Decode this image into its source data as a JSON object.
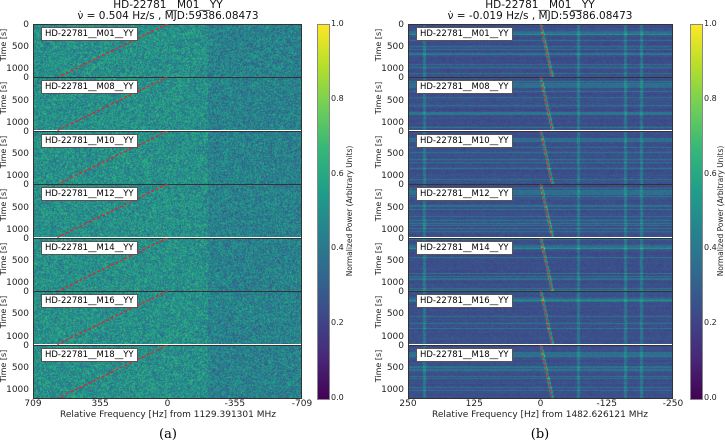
{
  "chart_data": [
    {
      "type": "heatmap",
      "panel": "(a)",
      "title": "HD-22781__M01__YY",
      "subtitle": "ν̇ = 0.504 Hz/s , MJD:59386.08473",
      "drift_rate_hz_per_s": 0.504,
      "xlabel": "Relative Frequency [Hz] from 1129.391301 MHz",
      "ylabel": "Time [s]",
      "xlim": [
        709,
        -709
      ],
      "xticks": [
        "709",
        "355",
        "0",
        "-355",
        "-709"
      ],
      "xtick_values": [
        709,
        355,
        0,
        -355,
        -709
      ],
      "ylim": [
        0,
        1150
      ],
      "yticks": [
        "0",
        "500",
        "1000"
      ],
      "ytick_values": [
        0,
        500,
        1000
      ],
      "subplots": [
        "HD-22781__M01__YY",
        "HD-22781__M08__YY",
        "HD-22781__M10__YY",
        "HD-22781__M12__YY",
        "HD-22781__M14__YY",
        "HD-22781__M16__YY",
        "HD-22781__M18__YY"
      ],
      "colorbar": {
        "label": "Normalized Power (Arbitrary Units)",
        "ticks": [
          "0.0",
          "0.2",
          "0.4",
          "0.6",
          "0.8",
          "1.0"
        ],
        "range": [
          0,
          1
        ],
        "colormap": "viridis"
      },
      "drift_line": {
        "start": [
          0,
          0
        ],
        "end": [
          580,
          1150
        ],
        "color": "#e3242b"
      },
      "background_level": 0.5,
      "bright_channels_hz": []
    },
    {
      "type": "heatmap",
      "panel": "(b)",
      "title": "HD-22781__M01__YY",
      "subtitle": "ν̇ = -0.019 Hz/s , MJD:59386.08473",
      "drift_rate_hz_per_s": -0.019,
      "xlabel": "Relative Frequency [Hz] from 1482.626121 MHz",
      "ylabel": "Time [s]",
      "xlim": [
        250,
        -250
      ],
      "xticks": [
        "250",
        "125",
        "0",
        "-125",
        "-250"
      ],
      "xtick_values": [
        250,
        125,
        0,
        -125,
        -250
      ],
      "ylim": [
        0,
        1150
      ],
      "yticks": [
        "0",
        "500",
        "1000"
      ],
      "ytick_values": [
        0,
        500,
        1000
      ],
      "subplots": [
        "HD-22781__M01__YY",
        "HD-22781__M08__YY",
        "HD-22781__M10__YY",
        "HD-22781__M12__YY",
        "HD-22781__M14__YY",
        "HD-22781__M16__YY",
        "HD-22781__M18__YY"
      ],
      "colorbar": {
        "label": "Normalized Power (Arbitrary Units)",
        "ticks": [
          "0.0",
          "0.2",
          "0.4",
          "0.6",
          "0.8",
          "1.0"
        ],
        "range": [
          0,
          1
        ],
        "colormap": "viridis"
      },
      "drift_line": {
        "start": [
          0,
          0
        ],
        "end": [
          -22,
          1150
        ],
        "color": "#e3242b"
      },
      "background_level": 0.18,
      "bright_channels_hz": [
        220,
        0,
        -70,
        -160,
        -190
      ]
    }
  ]
}
